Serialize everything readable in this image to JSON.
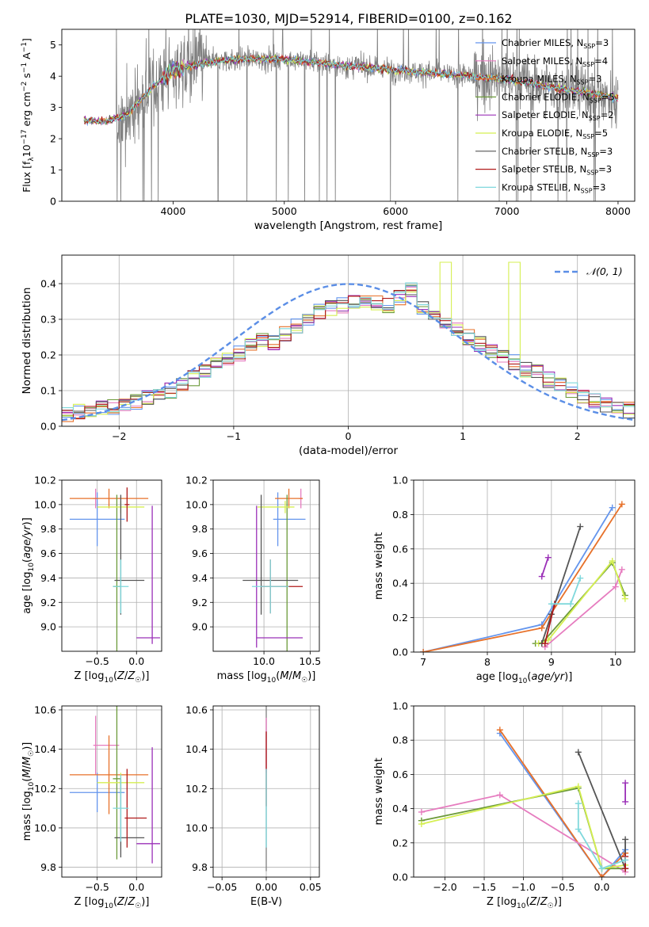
{
  "figure_title": "PLATE=1030, MJD=52914, FIBERID=0100, z=0.162",
  "models": [
    {
      "name": "Chabrier MILES",
      "nssp": "3",
      "color": "#6495ed"
    },
    {
      "name": "Salpeter MILES",
      "nssp": "4",
      "color": "#e67cbf"
    },
    {
      "name": "Kroupa MILES",
      "nssp": "3",
      "color": "#e7712a"
    },
    {
      "name": "Chabrier ELODIE",
      "nssp": "5",
      "color": "#6c9a3a"
    },
    {
      "name": "Salpeter ELODIE",
      "nssp": "2",
      "color": "#9b30b8"
    },
    {
      "name": "Kroupa ELODIE",
      "nssp": "5",
      "color": "#d5ef52"
    },
    {
      "name": "Chabrier STELIB",
      "nssp": "3",
      "color": "#555555"
    },
    {
      "name": "Salpeter STELIB",
      "nssp": "3",
      "color": "#b01a1a"
    },
    {
      "name": "Kroupa STELIB",
      "nssp": "3",
      "color": "#7fd8dc"
    }
  ],
  "chart_data": [
    {
      "id": "spectrum",
      "type": "line",
      "xlabel": "wavelength [Angstrom, rest frame]",
      "ylabel": "Flux [f_λ 10^-17 erg cm^-2 s^-1 A^-1]",
      "xlim": [
        3000,
        8150
      ],
      "ylim": [
        0,
        5.5
      ],
      "xticks": [
        4000,
        5000,
        6000,
        7000,
        8000
      ],
      "yticks": [
        0,
        1,
        2,
        3,
        4,
        5
      ],
      "legend_position": "top-right",
      "data_color": "#808080",
      "wavelength_range": [
        3200,
        8000
      ],
      "continuum": {
        "x": [
          3200,
          3400,
          3600,
          3800,
          4000,
          4300,
          4600,
          5000,
          5500,
          6000,
          6500,
          7000,
          7500,
          8000
        ],
        "y": [
          2.6,
          2.55,
          2.8,
          3.6,
          4.2,
          4.45,
          4.55,
          4.55,
          4.35,
          4.2,
          4.05,
          3.9,
          3.6,
          3.3
        ]
      },
      "grid": false
    },
    {
      "id": "residuals",
      "type": "histogram",
      "xlabel": "(data-model)/error",
      "ylabel": "Normed distribution",
      "xlim": [
        -2.5,
        2.5
      ],
      "ylim": [
        0,
        0.48
      ],
      "xticks": [
        -2,
        -1,
        0,
        1,
        2
      ],
      "yticks": [
        0.0,
        0.1,
        0.2,
        0.3,
        0.4
      ],
      "bins": 50,
      "legend_position": "top-right",
      "reference_curve": {
        "name": "𝒩(0, 1)",
        "mean": 0,
        "sigma": 1,
        "color": "#5b8ee6"
      },
      "bin_values": [
        0.035,
        0.04,
        0.045,
        0.05,
        0.055,
        0.06,
        0.07,
        0.08,
        0.09,
        0.1,
        0.115,
        0.135,
        0.155,
        0.175,
        0.19,
        0.205,
        0.225,
        0.24,
        0.235,
        0.26,
        0.28,
        0.3,
        0.32,
        0.33,
        0.34,
        0.345,
        0.35,
        0.345,
        0.34,
        0.36,
        0.38,
        0.33,
        0.31,
        0.29,
        0.27,
        0.25,
        0.23,
        0.21,
        0.195,
        0.18,
        0.16,
        0.15,
        0.13,
        0.115,
        0.1,
        0.085,
        0.07,
        0.06,
        0.05,
        0.045
      ],
      "grid": true
    },
    {
      "id": "age-vs-Z",
      "type": "scatter",
      "xlabel": "Z [log10(Z/Z☉)]",
      "ylabel": "age [log10(age/yr)]",
      "xlim": [
        -0.95,
        0.32
      ],
      "ylim": [
        8.8,
        10.2
      ],
      "xticks": [
        -0.5,
        0.0
      ],
      "yticks": [
        9.0,
        9.2,
        9.4,
        9.6,
        9.8,
        10.0,
        10.2
      ],
      "errorbars": [
        {
          "x": -0.5,
          "y": 9.88,
          "xerr": [
            0.35,
            0.35
          ],
          "yerr": [
            0.22,
            0.22
          ],
          "color": "#6495ed"
        },
        {
          "x": -0.52,
          "y": 10.05,
          "xerr": [
            0.03,
            0.03
          ],
          "yerr": [
            0.08,
            0.08
          ],
          "color": "#e67cbf"
        },
        {
          "x": -0.35,
          "y": 10.05,
          "xerr": [
            0.5,
            0.5
          ],
          "yerr": [
            0.08,
            0.08
          ],
          "color": "#e7712a"
        },
        {
          "x": -0.25,
          "y": 9.33,
          "xerr": [
            0.05,
            0.05
          ],
          "yerr": [
            0.75,
            0.75
          ],
          "color": "#6c9a3a"
        },
        {
          "x": 0.2,
          "y": 8.91,
          "xerr": [
            0.2,
            0.1
          ],
          "yerr": [
            0.05,
            1.08
          ],
          "color": "#9b30b8"
        },
        {
          "x": -0.2,
          "y": 9.98,
          "xerr": [
            0.3,
            0.3
          ],
          "yerr": [
            0.05,
            0.05
          ],
          "color": "#d5ef52"
        },
        {
          "x": -0.2,
          "y": 9.38,
          "xerr": [
            0.08,
            0.3
          ],
          "yerr": [
            0.28,
            0.7
          ],
          "color": "#555555"
        },
        {
          "x": -0.12,
          "y": 10.0,
          "xerr": [
            0.03,
            0.03
          ],
          "yerr": [
            0.14,
            0.14
          ],
          "color": "#b01a1a"
        },
        {
          "x": -0.2,
          "y": 9.33,
          "xerr": [
            0.1,
            0.1
          ],
          "yerr": [
            0.22,
            0.22
          ],
          "color": "#7fd8dc"
        }
      ],
      "grid": true
    },
    {
      "id": "age-vs-mass",
      "type": "scatter",
      "xlabel": "mass [log10(M/M☉)]",
      "ylabel": "",
      "xlim": [
        9.45,
        10.6
      ],
      "ylim": [
        8.8,
        10.2
      ],
      "xticks": [
        10.0,
        10.5
      ],
      "yticks": [
        9.0,
        9.2,
        9.4,
        9.6,
        9.8,
        10.0,
        10.2
      ],
      "errorbars": [
        {
          "x": 10.15,
          "y": 9.88,
          "xerr": [
            0.05,
            0.3
          ],
          "yerr": [
            0.22,
            0.22
          ],
          "color": "#6495ed"
        },
        {
          "x": 10.4,
          "y": 10.05,
          "xerr": [
            0.02,
            0.02
          ],
          "yerr": [
            0.08,
            0.08
          ],
          "color": "#e67cbf"
        },
        {
          "x": 10.27,
          "y": 10.05,
          "xerr": [
            0.15,
            0.15
          ],
          "yerr": [
            0.08,
            0.08
          ],
          "color": "#e7712a"
        },
        {
          "x": 10.25,
          "y": 9.33,
          "xerr": [
            0.02,
            0.02
          ],
          "yerr": [
            0.75,
            0.75
          ],
          "color": "#6c9a3a"
        },
        {
          "x": 9.92,
          "y": 8.91,
          "xerr": [
            0.0,
            0.5
          ],
          "yerr": [
            0.08,
            1.08
          ],
          "color": "#9b30b8"
        },
        {
          "x": 10.23,
          "y": 9.98,
          "xerr": [
            0.3,
            0.1
          ],
          "yerr": [
            0.05,
            0.05
          ],
          "color": "#d5ef52"
        },
        {
          "x": 9.97,
          "y": 9.38,
          "xerr": [
            0.2,
            0.4
          ],
          "yerr": [
            0.28,
            0.7
          ],
          "color": "#555555"
        },
        {
          "x": 10.07,
          "y": 9.33,
          "xerr": [
            0.1,
            0.35
          ],
          "yerr": [
            0.22,
            0.22
          ],
          "color": "#b01a1a"
        },
        {
          "x": 10.07,
          "y": 9.33,
          "xerr": [
            0.2,
            0.2
          ],
          "yerr": [
            0.22,
            0.22
          ],
          "color": "#7fd8dc"
        }
      ],
      "grid": true
    },
    {
      "id": "weight-vs-age",
      "type": "line",
      "xlabel": "age  [log10(age/yr)]",
      "ylabel": "mass weight",
      "xlim": [
        6.85,
        10.3
      ],
      "ylim": [
        0,
        1.0
      ],
      "xticks": [
        7,
        8,
        9,
        10
      ],
      "yticks": [
        0.0,
        0.2,
        0.4,
        0.6,
        0.8,
        1.0
      ],
      "series": [
        {
          "color": "#6495ed",
          "x": [
            7.0,
            8.85,
            9.95
          ],
          "y": [
            0.0,
            0.16,
            0.84
          ]
        },
        {
          "color": "#e7712a",
          "x": [
            7.0,
            8.85,
            10.1
          ],
          "y": [
            0.0,
            0.14,
            0.86
          ]
        },
        {
          "color": "#e67cbf",
          "x": [
            8.9,
            10.0,
            10.1
          ],
          "y": [
            0.03,
            0.38,
            0.48
          ]
        },
        {
          "color": "#6c9a3a",
          "x": [
            8.75,
            8.85,
            9.95,
            10.15
          ],
          "y": [
            0.05,
            0.05,
            0.52,
            0.33
          ]
        },
        {
          "color": "#9b30b8",
          "x": [
            8.85,
            8.95
          ],
          "y": [
            0.44,
            0.55
          ]
        },
        {
          "color": "#d5ef52",
          "x": [
            8.8,
            8.95,
            9.95,
            10.15
          ],
          "y": [
            0.05,
            0.07,
            0.53,
            0.31
          ]
        },
        {
          "color": "#555555",
          "x": [
            8.85,
            9.0,
            9.45
          ],
          "y": [
            0.05,
            0.22,
            0.73
          ]
        },
        {
          "color": "#b01a1a",
          "x": [
            8.9,
            9.05
          ],
          "y": [
            0.05,
            0.28
          ]
        },
        {
          "color": "#7fd8dc",
          "x": [
            9.0,
            9.3,
            9.45
          ],
          "y": [
            0.28,
            0.28,
            0.43
          ]
        }
      ],
      "grid": true
    },
    {
      "id": "mass-vs-Z",
      "type": "scatter",
      "xlabel": "Z [log10(Z/Z☉)]",
      "ylabel": "mass [log10(M/M☉)]",
      "xlim": [
        -0.95,
        0.32
      ],
      "ylim": [
        9.75,
        10.62
      ],
      "xticks": [
        -0.5,
        0.0
      ],
      "yticks": [
        9.8,
        10.0,
        10.2,
        10.4,
        10.6
      ],
      "errorbars": [
        {
          "x": -0.5,
          "y": 10.18,
          "xerr": [
            0.35,
            0.35
          ],
          "yerr": [
            0.1,
            0.1
          ],
          "color": "#6495ed"
        },
        {
          "x": -0.52,
          "y": 10.42,
          "xerr": [
            0.03,
            0.3
          ],
          "yerr": [
            0.15,
            0.15
          ],
          "color": "#e67cbf"
        },
        {
          "x": -0.35,
          "y": 10.27,
          "xerr": [
            0.5,
            0.5
          ],
          "yerr": [
            0.2,
            0.2
          ],
          "color": "#e7712a"
        },
        {
          "x": -0.25,
          "y": 10.25,
          "xerr": [
            0.05,
            0.05
          ],
          "yerr": [
            0.41,
            0.41
          ],
          "color": "#6c9a3a"
        },
        {
          "x": 0.2,
          "y": 9.92,
          "xerr": [
            0.2,
            0.1
          ],
          "yerr": [
            0.1,
            0.49
          ],
          "color": "#9b30b8"
        },
        {
          "x": -0.2,
          "y": 10.23,
          "xerr": [
            0.3,
            0.3
          ],
          "yerr": [
            0.05,
            0.05
          ],
          "color": "#d5ef52"
        },
        {
          "x": -0.2,
          "y": 9.95,
          "xerr": [
            0.08,
            0.3
          ],
          "yerr": [
            0.1,
            0.3
          ],
          "color": "#555555"
        },
        {
          "x": -0.12,
          "y": 10.05,
          "xerr": [
            0.03,
            0.25
          ],
          "yerr": [
            0.15,
            0.25
          ],
          "color": "#b01a1a"
        },
        {
          "x": -0.2,
          "y": 10.1,
          "xerr": [
            0.1,
            0.1
          ],
          "yerr": [
            0.17,
            0.17
          ],
          "color": "#7fd8dc"
        }
      ],
      "grid": true
    },
    {
      "id": "mass-vs-EBV",
      "type": "scatter",
      "xlabel": "E(B-V)",
      "ylabel": "",
      "xlim": [
        -0.06,
        0.06
      ],
      "ylim": [
        9.75,
        10.62
      ],
      "xticks": [
        -0.05,
        0.0,
        0.05
      ],
      "yticks": [
        9.8,
        10.0,
        10.2,
        10.4,
        10.6
      ],
      "errorbars": [
        {
          "x": 0.0,
          "y": 10.2,
          "yerr": [
            0.42,
            0.42
          ],
          "color": "#808080"
        },
        {
          "x": 0.0,
          "y": 10.42,
          "yerr": [
            0.14,
            0.14
          ],
          "color": "#e67cbf"
        },
        {
          "x": 0.0,
          "y": 10.3,
          "yerr": [
            0.19,
            0.19
          ],
          "color": "#b01a1a"
        },
        {
          "x": 0.0,
          "y": 10.1,
          "yerr": [
            0.2,
            0.2
          ],
          "color": "#7fd8dc"
        }
      ],
      "grid": true
    },
    {
      "id": "weight-vs-Z",
      "type": "line",
      "xlabel": "Z [log10(Z/Z☉)]",
      "ylabel": "mass weight",
      "xlim": [
        -2.4,
        0.42
      ],
      "ylim": [
        0,
        1.0
      ],
      "xticks": [
        -2.0,
        -1.5,
        -1.0,
        -0.5,
        0.0
      ],
      "yticks": [
        0.0,
        0.2,
        0.4,
        0.6,
        0.8,
        1.0
      ],
      "series": [
        {
          "color": "#6495ed",
          "x": [
            -1.3,
            0.0,
            0.3
          ],
          "y": [
            0.84,
            0.0,
            0.16
          ]
        },
        {
          "color": "#e7712a",
          "x": [
            -1.3,
            0.0,
            0.3
          ],
          "y": [
            0.86,
            0.0,
            0.14
          ]
        },
        {
          "color": "#e67cbf",
          "x": [
            -2.3,
            -1.3,
            0.3
          ],
          "y": [
            0.38,
            0.48,
            0.03
          ]
        },
        {
          "color": "#6c9a3a",
          "x": [
            -2.3,
            -0.3,
            0.0,
            0.3
          ],
          "y": [
            0.33,
            0.52,
            0.05,
            0.05
          ]
        },
        {
          "color": "#9b30b8",
          "x": [
            0.3,
            0.3
          ],
          "y": [
            0.44,
            0.55
          ]
        },
        {
          "color": "#d5ef52",
          "x": [
            -2.3,
            -0.3,
            0.0,
            0.3
          ],
          "y": [
            0.31,
            0.53,
            0.05,
            0.07
          ]
        },
        {
          "color": "#555555",
          "x": [
            -0.3,
            0.3,
            0.3
          ],
          "y": [
            0.73,
            0.05,
            0.22
          ]
        },
        {
          "color": "#b01a1a",
          "x": [
            0.3,
            0.3
          ],
          "y": [
            0.05,
            0.12
          ]
        },
        {
          "color": "#7fd8dc",
          "x": [
            -0.3,
            -0.3,
            0.0,
            0.3
          ],
          "y": [
            0.43,
            0.28,
            0.05,
            0.1
          ]
        }
      ],
      "grid": true
    }
  ]
}
